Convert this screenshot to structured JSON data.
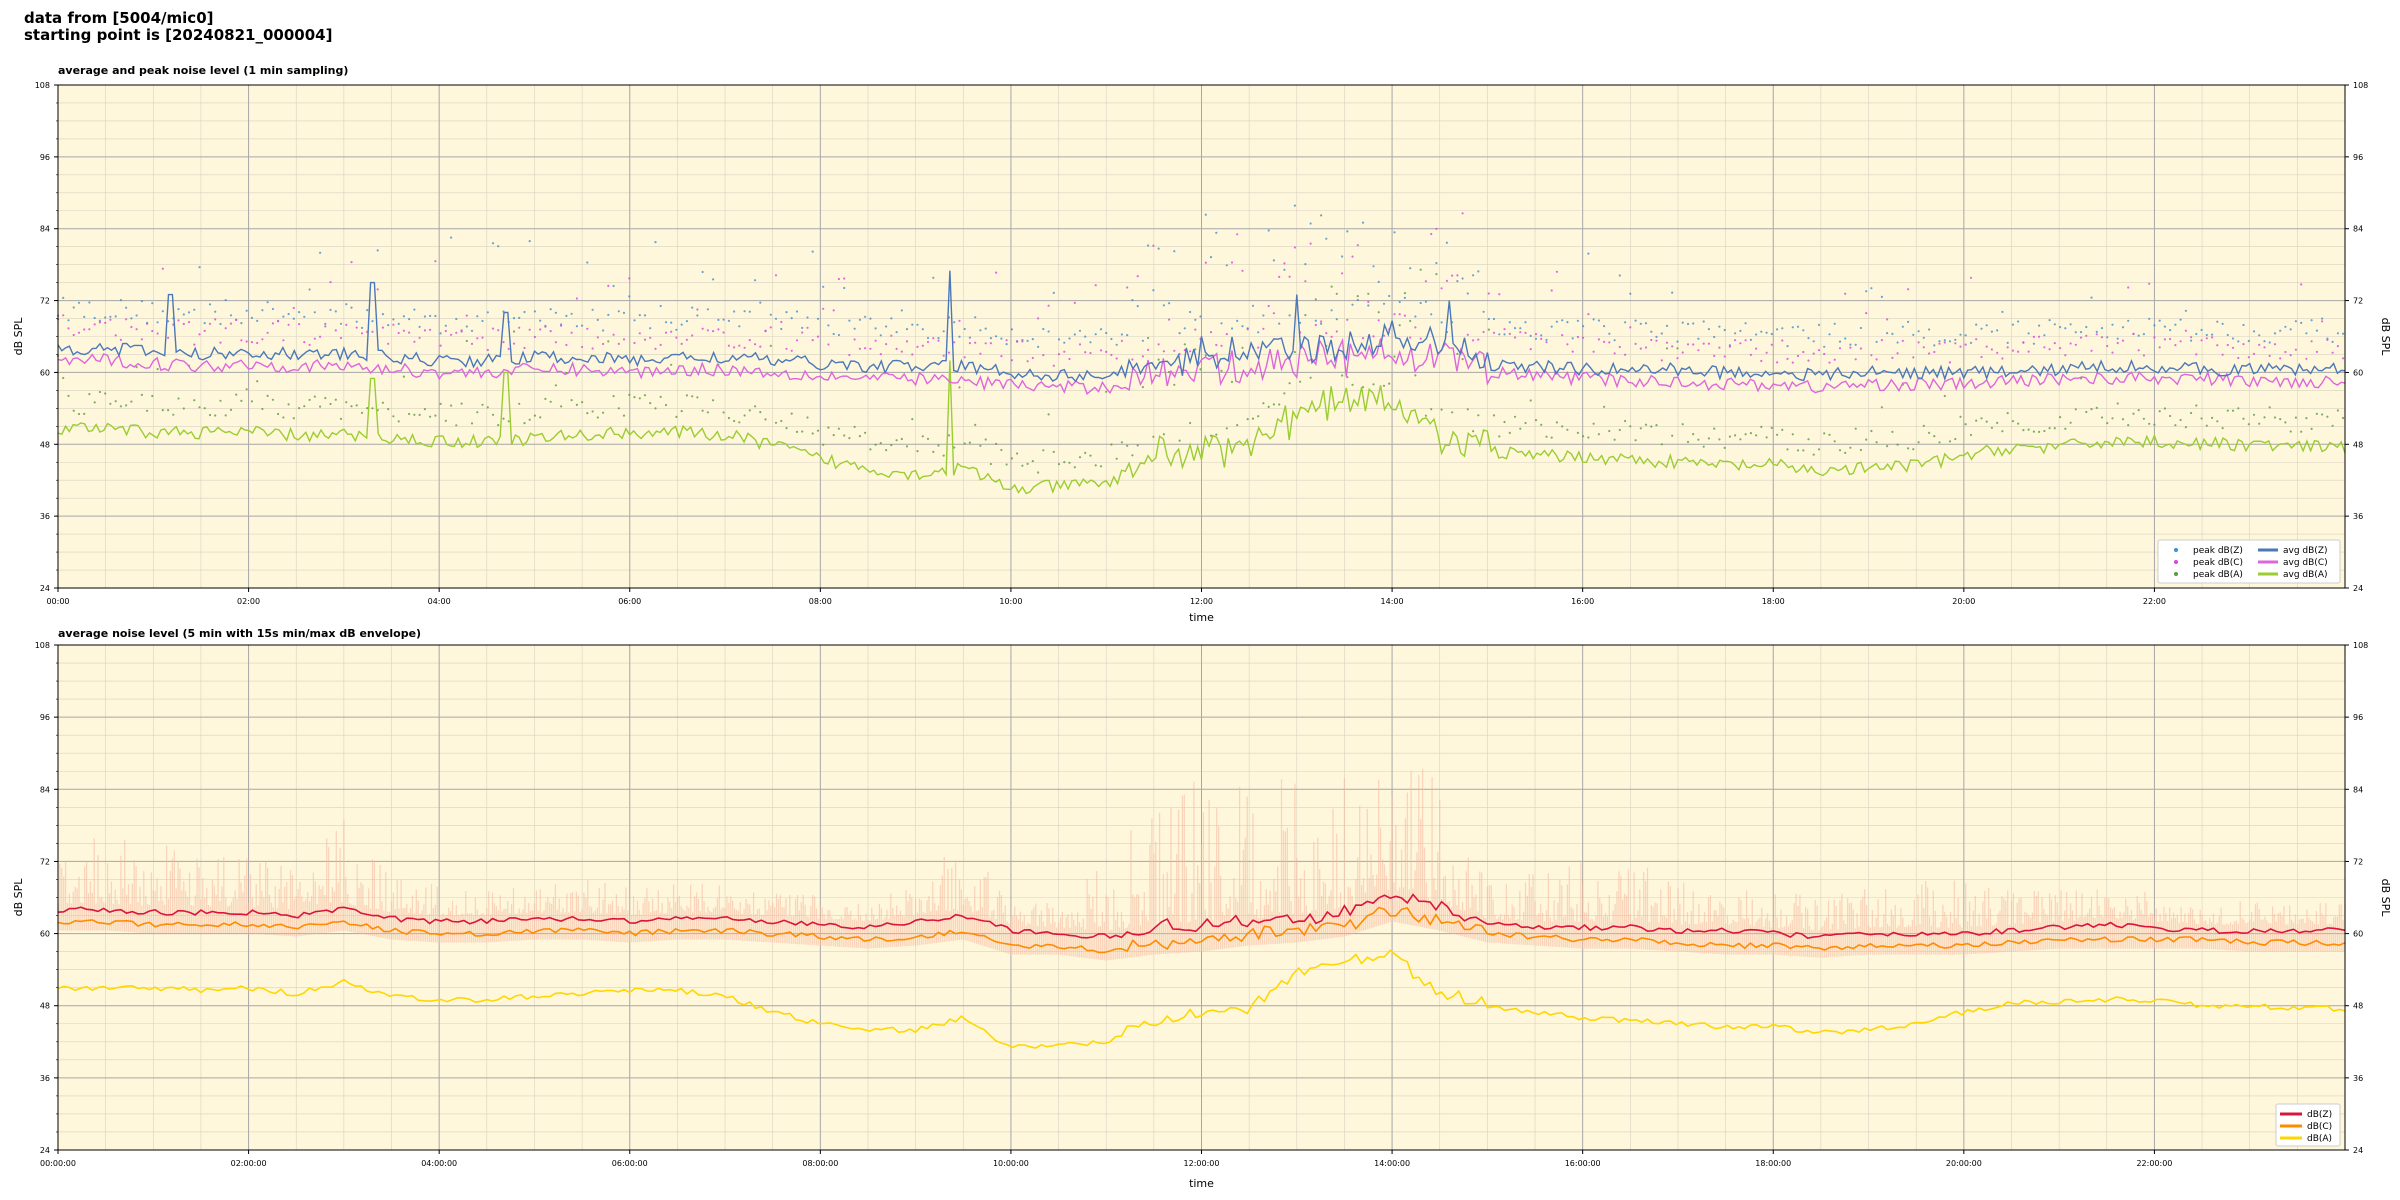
{
  "header": {
    "line1": "data from [5004/mic0]",
    "line2": "starting point is [20240821_000004]"
  },
  "colors": {
    "background": "#fff7dc",
    "grid_major": "#a8a8a8",
    "grid_minor": "#d8d2c0",
    "peak_dBZ": "#3d8fd0",
    "peak_dBC": "#e040e0",
    "peak_dBA": "#5a9a40",
    "avg_dBZ": "#4a78b8",
    "avg_dBC": "#dd66dd",
    "avg_dBA": "#9acd32",
    "dBZ": "#dc143c",
    "dBC": "#ff8c00",
    "dBA": "#ffd700",
    "envelope": "#f5b8a0"
  },
  "chart_data": [
    {
      "type": "line",
      "title": "average and peak noise level (1 min sampling)",
      "xlabel": "time",
      "ylabel": "dB SPL",
      "ylim": [
        24,
        108
      ],
      "xlim_hours": [
        0,
        24
      ],
      "yticks": [
        "24",
        "36",
        "48",
        "60",
        "72",
        "84",
        "96",
        "108"
      ],
      "xticks": [
        "00:00",
        "02:00",
        "04:00",
        "06:00",
        "08:00",
        "10:00",
        "12:00",
        "14:00",
        "16:00",
        "18:00",
        "20:00",
        "22:00"
      ],
      "grid": true,
      "legend_position": "lower-right",
      "legend": [
        "peak dB(Z)",
        "peak dB(C)",
        "peak dB(A)",
        "avg dB(Z)",
        "avg dB(C)",
        "avg dB(A)"
      ],
      "x_hours": [
        0,
        0.5,
        1,
        1.5,
        2,
        2.5,
        3,
        3.5,
        4,
        4.5,
        5,
        5.5,
        6,
        6.5,
        7,
        7.5,
        8,
        8.5,
        9,
        9.5,
        10,
        10.5,
        11,
        11.5,
        12,
        12.5,
        13,
        13.5,
        14,
        14.5,
        15,
        15.5,
        16,
        16.5,
        17,
        17.5,
        18,
        18.5,
        19,
        19.5,
        20,
        20.5,
        21,
        21.5,
        22,
        22.5,
        23,
        23.5,
        24
      ],
      "series": [
        {
          "name": "avg dB(Z)",
          "values": [
            64,
            64,
            63.5,
            63,
            63.5,
            63,
            63,
            62.5,
            62,
            62,
            62.5,
            62.5,
            62,
            62.5,
            62.5,
            62,
            61.5,
            61,
            61,
            61,
            60,
            59.5,
            59.5,
            61,
            62,
            62,
            63,
            63.5,
            64.5,
            63.5,
            61,
            61,
            60.5,
            60.5,
            60.5,
            60,
            60,
            59.5,
            60,
            60,
            60,
            60,
            60.5,
            61,
            61,
            60.5,
            60.5,
            60.5,
            60.5
          ]
        },
        {
          "name": "avg dB(C)",
          "values": [
            62,
            62,
            61.5,
            61,
            61.5,
            61,
            61,
            60.5,
            60,
            60,
            60.5,
            60.5,
            60,
            60.5,
            60.5,
            60,
            59.5,
            59,
            59,
            58.5,
            58,
            57.5,
            57.5,
            59,
            60,
            60,
            61,
            61.5,
            62.5,
            61.5,
            60,
            59.5,
            59,
            58.5,
            58.5,
            58,
            58,
            57.5,
            58,
            58,
            58,
            58.5,
            59,
            59,
            59,
            59,
            58.5,
            58.5,
            58.5
          ]
        },
        {
          "name": "avg dB(A)",
          "values": [
            50.5,
            50.5,
            50,
            50,
            50,
            49.5,
            49.5,
            49,
            48.5,
            48.5,
            49,
            49.5,
            50,
            50,
            49.5,
            48,
            45.5,
            44,
            43,
            44,
            40.5,
            41,
            41.5,
            45,
            46,
            47,
            52,
            55,
            54,
            48,
            47,
            46,
            46,
            45.5,
            45,
            44.5,
            44.5,
            43.5,
            44,
            44.5,
            46,
            47.5,
            47.5,
            48.5,
            48.5,
            48,
            48,
            47.5,
            47.5
          ]
        }
      ],
      "spikes": [
        {
          "x_hours": 1.18,
          "series": "avg dB(Z)",
          "value": 73
        },
        {
          "x_hours": 3.3,
          "series": "avg dB(Z)",
          "value": 75
        },
        {
          "x_hours": 3.3,
          "series": "avg dB(A)",
          "value": 59
        },
        {
          "x_hours": 4.7,
          "series": "avg dB(Z)",
          "value": 70
        },
        {
          "x_hours": 4.7,
          "series": "avg dB(A)",
          "value": 60
        },
        {
          "x_hours": 9.35,
          "series": "avg dB(Z)",
          "value": 77
        },
        {
          "x_hours": 9.35,
          "series": "avg dB(A)",
          "value": 62
        },
        {
          "x_hours": 13.0,
          "series": "avg dB(Z)",
          "value": 73
        },
        {
          "x_hours": 14.6,
          "series": "avg dB(Z)",
          "value": 72
        }
      ]
    },
    {
      "type": "line",
      "title": "average noise level (5 min with 15s min/max dB envelope)",
      "xlabel": "time",
      "ylabel": "dB SPL",
      "ylim": [
        24,
        108
      ],
      "xlim_hours": [
        0,
        24
      ],
      "yticks": [
        "24",
        "36",
        "48",
        "60",
        "72",
        "84",
        "96",
        "108"
      ],
      "xticks": [
        "00:00:00",
        "02:00:00",
        "04:00:00",
        "06:00:00",
        "08:00:00",
        "10:00:00",
        "12:00:00",
        "14:00:00",
        "16:00:00",
        "18:00:00",
        "20:00:00",
        "22:00:00"
      ],
      "grid": true,
      "legend_position": "lower-right",
      "legend": [
        "dB(Z)",
        "dB(C)",
        "dB(A)"
      ],
      "x_hours": [
        0,
        0.5,
        1,
        1.5,
        2,
        2.5,
        3,
        3.5,
        4,
        4.5,
        5,
        5.5,
        6,
        6.5,
        7,
        7.5,
        8,
        8.5,
        9,
        9.5,
        10,
        10.5,
        11,
        11.5,
        12,
        12.5,
        13,
        13.5,
        14,
        14.5,
        15,
        15.5,
        16,
        16.5,
        17,
        17.5,
        18,
        18.5,
        19,
        19.5,
        20,
        20.5,
        21,
        21.5,
        22,
        22.5,
        23,
        23.5,
        24
      ],
      "series": [
        {
          "name": "dB(Z)",
          "values": [
            64,
            64,
            63.5,
            63.5,
            63.5,
            63,
            64,
            62.5,
            62,
            62,
            62.5,
            62.5,
            62,
            62.5,
            62.5,
            62,
            61.5,
            61,
            62,
            63,
            60.5,
            60,
            59.5,
            60.5,
            61,
            61.5,
            62,
            63,
            66,
            64,
            61.5,
            61,
            61,
            61,
            60.5,
            60.5,
            60,
            59.5,
            60,
            60,
            60,
            60.5,
            61,
            61.5,
            61,
            60.5,
            60.5,
            60.5,
            60.5
          ]
        },
        {
          "name": "dB(C)",
          "values": [
            62,
            62,
            61.5,
            61.5,
            61.5,
            61,
            62,
            60.5,
            60,
            60,
            60.5,
            60.5,
            60,
            60.5,
            60.5,
            60,
            59.5,
            59,
            59.5,
            60.5,
            58,
            58,
            57,
            58,
            58.5,
            59.5,
            60,
            61,
            63.5,
            62,
            60,
            59.5,
            59,
            59,
            58.5,
            58,
            58,
            57.5,
            58,
            58,
            58,
            58.5,
            59,
            59,
            59,
            59,
            58.5,
            58.5,
            58.5
          ]
        },
        {
          "name": "dB(A)",
          "values": [
            51,
            51,
            51,
            50.5,
            51,
            50,
            52,
            49.5,
            49,
            49,
            49.5,
            50,
            50.5,
            50.5,
            49.5,
            47,
            45,
            44,
            44,
            46,
            41,
            41.5,
            42,
            45.5,
            46,
            47,
            53,
            55,
            56,
            49.5,
            48,
            47,
            46,
            45.5,
            45,
            44.5,
            44.5,
            43.5,
            44,
            45,
            47,
            48.5,
            48.5,
            49,
            49,
            48,
            48,
            47.5,
            47.5
          ]
        }
      ],
      "envelope_max": [
        70,
        72,
        71,
        69,
        68,
        67,
        74,
        66,
        65,
        64,
        65,
        66,
        65,
        66,
        65,
        64,
        64,
        63,
        66,
        72,
        64,
        64,
        72,
        80,
        84,
        82,
        84,
        82,
        86,
        80,
        70,
        68,
        70,
        70,
        68,
        66,
        66,
        66,
        67,
        68,
        68,
        66,
        66,
        65,
        65,
        64,
        64,
        64,
        64
      ]
    }
  ]
}
